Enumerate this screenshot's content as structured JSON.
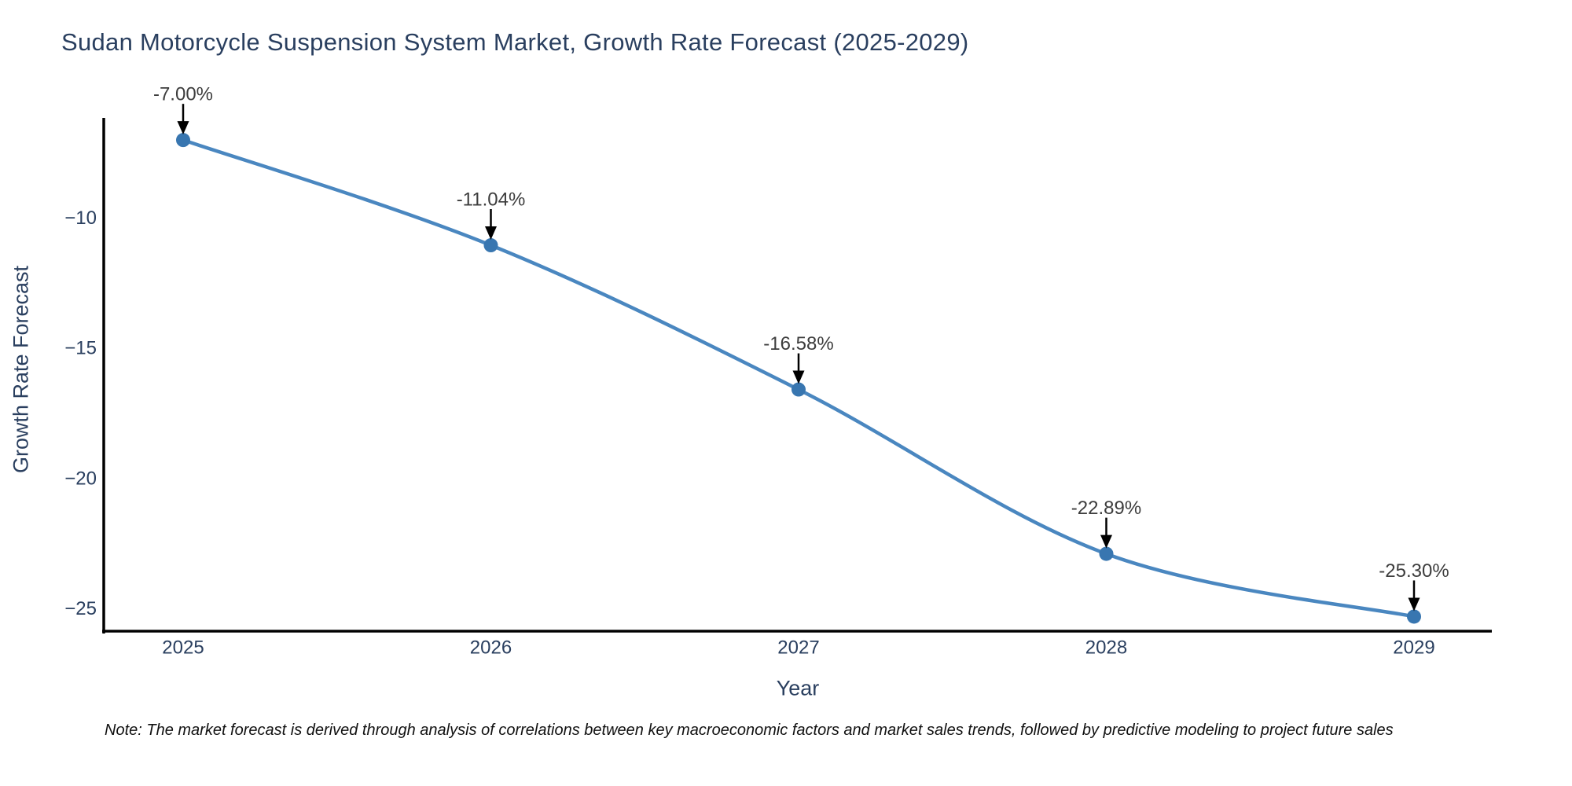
{
  "chart_data": {
    "type": "line",
    "title": "Sudan Motorcycle Suspension System Market, Growth Rate Forecast (2025-2029)",
    "xlabel": "Year",
    "ylabel": "Growth Rate Forecast",
    "categories": [
      "2025",
      "2026",
      "2027",
      "2028",
      "2029"
    ],
    "series": [
      {
        "name": "Growth Rate Forecast",
        "values": [
          -7.0,
          -11.04,
          -16.58,
          -22.89,
          -25.3
        ]
      }
    ],
    "point_labels": [
      "-7.00%",
      "-11.04%",
      "-16.58%",
      "-22.89%",
      "-25.30%"
    ],
    "yticks": [
      -10,
      -15,
      -20,
      -25
    ],
    "ytick_labels": [
      "−10",
      "−15",
      "−20",
      "−25"
    ],
    "ylim": [
      -25.95,
      -6.15
    ],
    "line_shape": "spline",
    "grid": false,
    "legend_position": "none",
    "line_color": "#4a87c0",
    "marker_color": "#3876b0",
    "axis_line_color": "#000000",
    "annotation_arrow_color": "#000000",
    "annotation_text_color": "#3d3d3d",
    "tick_text_color": "#2a3f5f",
    "title_text_color": "#2a3f5f"
  },
  "note": "Note: The market forecast is derived through analysis of correlations between key macroeconomic factors and market sales trends, followed by predictive modeling to project future sales"
}
